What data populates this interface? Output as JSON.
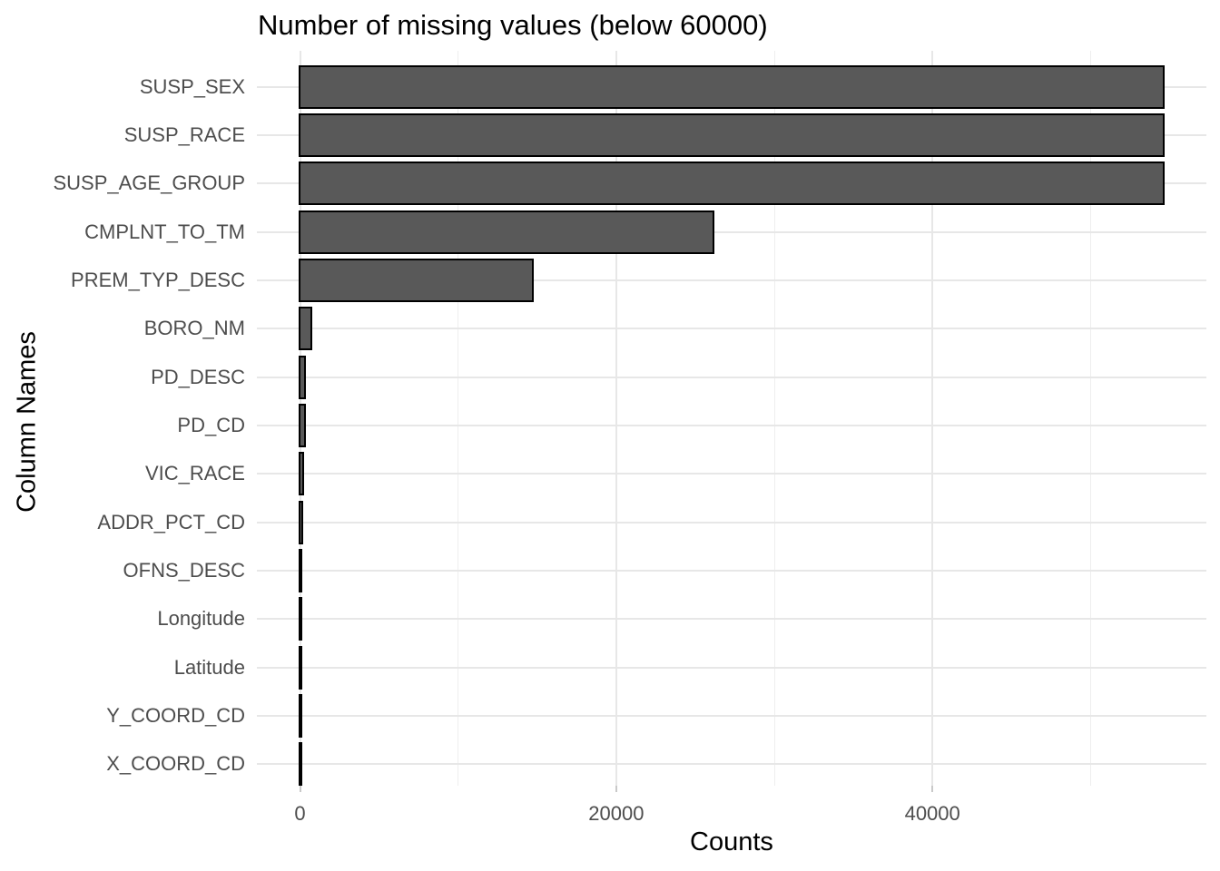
{
  "chart_data": {
    "type": "bar",
    "orientation": "horizontal",
    "title": "Number of missing values (below 60000)",
    "xlabel": "Counts",
    "ylabel": "Column Names",
    "categories": [
      "SUSP_SEX",
      "SUSP_RACE",
      "SUSP_AGE_GROUP",
      "CMPLNT_TO_TM",
      "PREM_TYP_DESC",
      "BORO_NM",
      "PD_DESC",
      "PD_CD",
      "VIC_RACE",
      "ADDR_PCT_CD",
      "OFNS_DESC",
      "Longitude",
      "Latitude",
      "Y_COORD_CD",
      "X_COORD_CD"
    ],
    "values": [
      54600,
      54600,
      54600,
      26150,
      14730,
      700,
      300,
      280,
      160,
      140,
      60,
      40,
      40,
      25,
      25
    ],
    "x_ticks": [
      0,
      20000,
      40000
    ],
    "x_tick_labels": [
      "0",
      "20000",
      "40000"
    ],
    "x_minor_ticks": [
      10000,
      30000,
      50000
    ],
    "xlim": [
      -2730,
      57330
    ],
    "grid": "on",
    "legend": "none",
    "colors": {
      "bar_fill": "#595959",
      "bar_stroke": "#000000",
      "grid_major": "#e7e7e7",
      "grid_minor": "#eeeeee",
      "axis_text": "#4d4d4d",
      "axis_title": "#000000",
      "title": "#000000",
      "tick_mark": "#c9c9c9",
      "background": "#ffffff"
    }
  }
}
